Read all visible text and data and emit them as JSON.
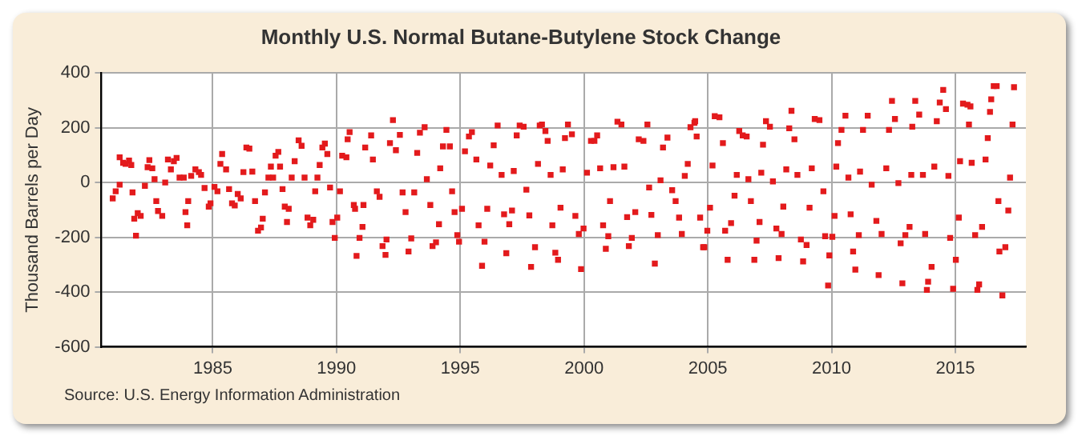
{
  "chart_data": {
    "type": "scatter",
    "title": "Monthly U.S. Normal Butane-Butylene Stock Change",
    "ylabel": "Thousand Barrels per Day",
    "annotations": [
      "Source: U.S. Energy Information Administration"
    ],
    "xlim": [
      1980.5,
      2017.85
    ],
    "xticks": [
      1985,
      1990,
      1995,
      2000,
      2005,
      2010,
      2015
    ],
    "ylim": [
      -600,
      400
    ],
    "yticks": [
      -600,
      -400,
      -200,
      0,
      200,
      400
    ],
    "grid": true,
    "marker": "square",
    "legend": false,
    "series": [
      {
        "color": "#e31a1c",
        "x": [
          1980.96,
          1981.08,
          1981.24,
          1981.24,
          1981.38,
          1981.48,
          1981.62,
          1981.71,
          1981.76,
          1981.83,
          1981.9,
          1981.97,
          1982.09,
          1982.26,
          1982.37,
          1982.44,
          1982.56,
          1982.65,
          1982.72,
          1982.79,
          1982.96,
          1983.08,
          1983.19,
          1983.31,
          1983.43,
          1983.54,
          1983.66,
          1983.83,
          1983.9,
          1983.97,
          1984.01,
          1984.13,
          1984.3,
          1984.44,
          1984.53,
          1984.67,
          1984.84,
          1984.91,
          1985.07,
          1985.19,
          1985.31,
          1985.38,
          1985.54,
          1985.66,
          1985.78,
          1985.89,
          1986.01,
          1986.13,
          1986.24,
          1986.36,
          1986.48,
          1986.6,
          1986.71,
          1986.83,
          1986.95,
          1987.02,
          1987.11,
          1987.25,
          1987.35,
          1987.44,
          1987.54,
          1987.65,
          1987.72,
          1987.82,
          1987.91,
          1988.0,
          1988.07,
          1988.19,
          1988.31,
          1988.47,
          1988.59,
          1988.71,
          1988.83,
          1988.94,
          1989.06,
          1989.14,
          1989.23,
          1989.32,
          1989.43,
          1989.53,
          1989.63,
          1989.74,
          1989.84,
          1989.93,
          1990.03,
          1990.14,
          1990.23,
          1990.4,
          1990.45,
          1990.53,
          1990.7,
          1990.75,
          1990.81,
          1990.93,
          1991.05,
          1991.09,
          1991.16,
          1991.4,
          1991.47,
          1991.63,
          1991.74,
          1991.86,
          1991.98,
          1992.02,
          1992.16,
          1992.28,
          1992.4,
          1992.56,
          1992.67,
          1992.79,
          1992.91,
          1993.02,
          1993.14,
          1993.26,
          1993.37,
          1993.56,
          1993.65,
          1993.79,
          1993.88,
          1994.02,
          1994.14,
          1994.19,
          1994.3,
          1994.44,
          1994.58,
          1994.67,
          1994.77,
          1994.88,
          1994.95,
          1995.07,
          1995.19,
          1995.35,
          1995.47,
          1995.65,
          1995.74,
          1995.88,
          1995.98,
          1996.09,
          1996.21,
          1996.35,
          1996.51,
          1996.67,
          1996.77,
          1996.86,
          1996.98,
          1997.09,
          1997.16,
          1997.28,
          1997.4,
          1997.56,
          1997.67,
          1997.79,
          1997.86,
          1998.02,
          1998.14,
          1998.21,
          1998.3,
          1998.44,
          1998.53,
          1998.65,
          1998.72,
          1998.84,
          1998.95,
          1999.05,
          1999.14,
          1999.23,
          1999.35,
          1999.51,
          1999.65,
          1999.79,
          1999.88,
          1999.98,
          2000.12,
          2000.28,
          2000.42,
          2000.53,
          2000.65,
          2000.77,
          2000.88,
          2000.98,
          2001.05,
          2001.19,
          2001.35,
          2001.51,
          2001.63,
          2001.74,
          2001.81,
          2001.93,
          2002.07,
          2002.21,
          2002.4,
          2002.56,
          2002.63,
          2002.72,
          2002.86,
          2002.98,
          2003.09,
          2003.19,
          2003.37,
          2003.56,
          2003.7,
          2003.84,
          2003.95,
          2004.07,
          2004.19,
          2004.3,
          2004.46,
          2004.49,
          2004.55,
          2004.69,
          2004.81,
          2004.86,
          2004.98,
          2005.09,
          2005.19,
          2005.28,
          2005.47,
          2005.61,
          2005.7,
          2005.8,
          2005.94,
          2006.08,
          2006.17,
          2006.27,
          2006.41,
          2006.57,
          2006.64,
          2006.74,
          2006.88,
          2006.97,
          2007.09,
          2007.16,
          2007.23,
          2007.35,
          2007.51,
          2007.63,
          2007.77,
          2007.86,
          2007.98,
          2008.05,
          2008.17,
          2008.29,
          2008.38,
          2008.5,
          2008.62,
          2008.76,
          2008.85,
          2008.99,
          2009.11,
          2009.2,
          2009.32,
          2009.51,
          2009.67,
          2009.74,
          2009.86,
          2009.91,
          2010.03,
          2010.12,
          2010.19,
          2010.26,
          2010.4,
          2010.56,
          2010.68,
          2010.77,
          2010.87,
          2010.96,
          2011.1,
          2011.15,
          2011.27,
          2011.46,
          2011.62,
          2011.81,
          2011.9,
          2012.02,
          2012.21,
          2012.32,
          2012.44,
          2012.56,
          2012.7,
          2012.79,
          2012.86,
          2012.98,
          2013.15,
          2013.22,
          2013.26,
          2013.38,
          2013.54,
          2013.69,
          2013.78,
          2013.85,
          2013.9,
          2014.04,
          2014.15,
          2014.25,
          2014.37,
          2014.51,
          2014.62,
          2014.72,
          2014.79,
          2014.91,
          2015.02,
          2015.14,
          2015.19,
          2015.31,
          2015.49,
          2015.55,
          2015.61,
          2015.66,
          2015.8,
          2015.89,
          2015.96,
          2016.08,
          2016.22,
          2016.31,
          2016.4,
          2016.45,
          2016.55,
          2016.67,
          2016.74,
          2016.78,
          2016.9,
          2017.02,
          2017.14,
          2017.21,
          2017.31,
          2017.37
        ],
        "values": [
          -58,
          -32,
          -8,
          92,
          72,
          68,
          80,
          64,
          -36,
          -132,
          -194,
          -112,
          -122,
          -12,
          56,
          82,
          52,
          12,
          -68,
          -104,
          -122,
          0,
          84,
          48,
          78,
          90,
          18,
          18,
          -108,
          -156,
          -68,
          24,
          48,
          38,
          28,
          -20,
          -88,
          -76,
          -16,
          -32,
          68,
          104,
          48,
          -24,
          -76,
          -84,
          -42,
          -58,
          38,
          128,
          124,
          40,
          -68,
          -176,
          -164,
          -132,
          -36,
          18,
          58,
          18,
          98,
          112,
          58,
          -24,
          -88,
          -144,
          -96,
          18,
          78,
          154,
          134,
          18,
          -128,
          -156,
          -136,
          -32,
          18,
          64,
          128,
          142,
          104,
          -18,
          -144,
          -202,
          -128,
          -32,
          98,
          92,
          158,
          184,
          -82,
          -96,
          -268,
          -202,
          -162,
          -82,
          128,
          172,
          84,
          -32,
          -52,
          -232,
          -264,
          -208,
          144,
          228,
          118,
          174,
          -36,
          -108,
          -252,
          -204,
          -36,
          108,
          182,
          202,
          12,
          -82,
          -232,
          -218,
          -152,
          52,
          132,
          192,
          132,
          -32,
          -108,
          -192,
          -216,
          -96,
          114,
          168,
          184,
          84,
          -156,
          -304,
          -216,
          -96,
          62,
          136,
          208,
          28,
          -116,
          -258,
          -152,
          -102,
          42,
          172,
          208,
          204,
          -26,
          -120,
          -308,
          -236,
          68,
          208,
          212,
          188,
          152,
          28,
          -156,
          -256,
          -282,
          -92,
          48,
          162,
          212,
          176,
          -122,
          -188,
          -316,
          -168,
          36,
          152,
          152,
          172,
          52,
          -156,
          -242,
          -196,
          -68,
          56,
          222,
          212,
          58,
          -126,
          -232,
          -202,
          -108,
          158,
          152,
          212,
          -18,
          -118,
          -296,
          -192,
          8,
          128,
          164,
          -28,
          -68,
          -128,
          -188,
          24,
          68,
          202,
          218,
          224,
          168,
          -128,
          -236,
          -236,
          -176,
          -92,
          62,
          242,
          238,
          144,
          -176,
          -282,
          -148,
          -48,
          28,
          188,
          172,
          168,
          12,
          -68,
          -282,
          -212,
          -144,
          36,
          138,
          224,
          204,
          4,
          -168,
          -276,
          -188,
          -88,
          48,
          198,
          262,
          158,
          28,
          -208,
          -288,
          -228,
          -92,
          52,
          232,
          228,
          -32,
          -196,
          -376,
          -266,
          -198,
          -122,
          58,
          144,
          192,
          244,
          18,
          -116,
          -252,
          -318,
          -192,
          40,
          192,
          244,
          -8,
          -140,
          -338,
          -188,
          52,
          192,
          298,
          232,
          -2,
          -222,
          -368,
          -192,
          -162,
          28,
          204,
          298,
          248,
          28,
          -188,
          -392,
          -362,
          -308,
          58,
          224,
          292,
          338,
          268,
          24,
          -202,
          -388,
          -282,
          -128,
          78,
          288,
          284,
          212,
          278,
          72,
          -192,
          -392,
          -372,
          -162,
          84,
          162,
          258,
          304,
          352,
          352,
          -68,
          -252,
          -412,
          -236,
          -102,
          18,
          212,
          348
        ]
      }
    ]
  }
}
